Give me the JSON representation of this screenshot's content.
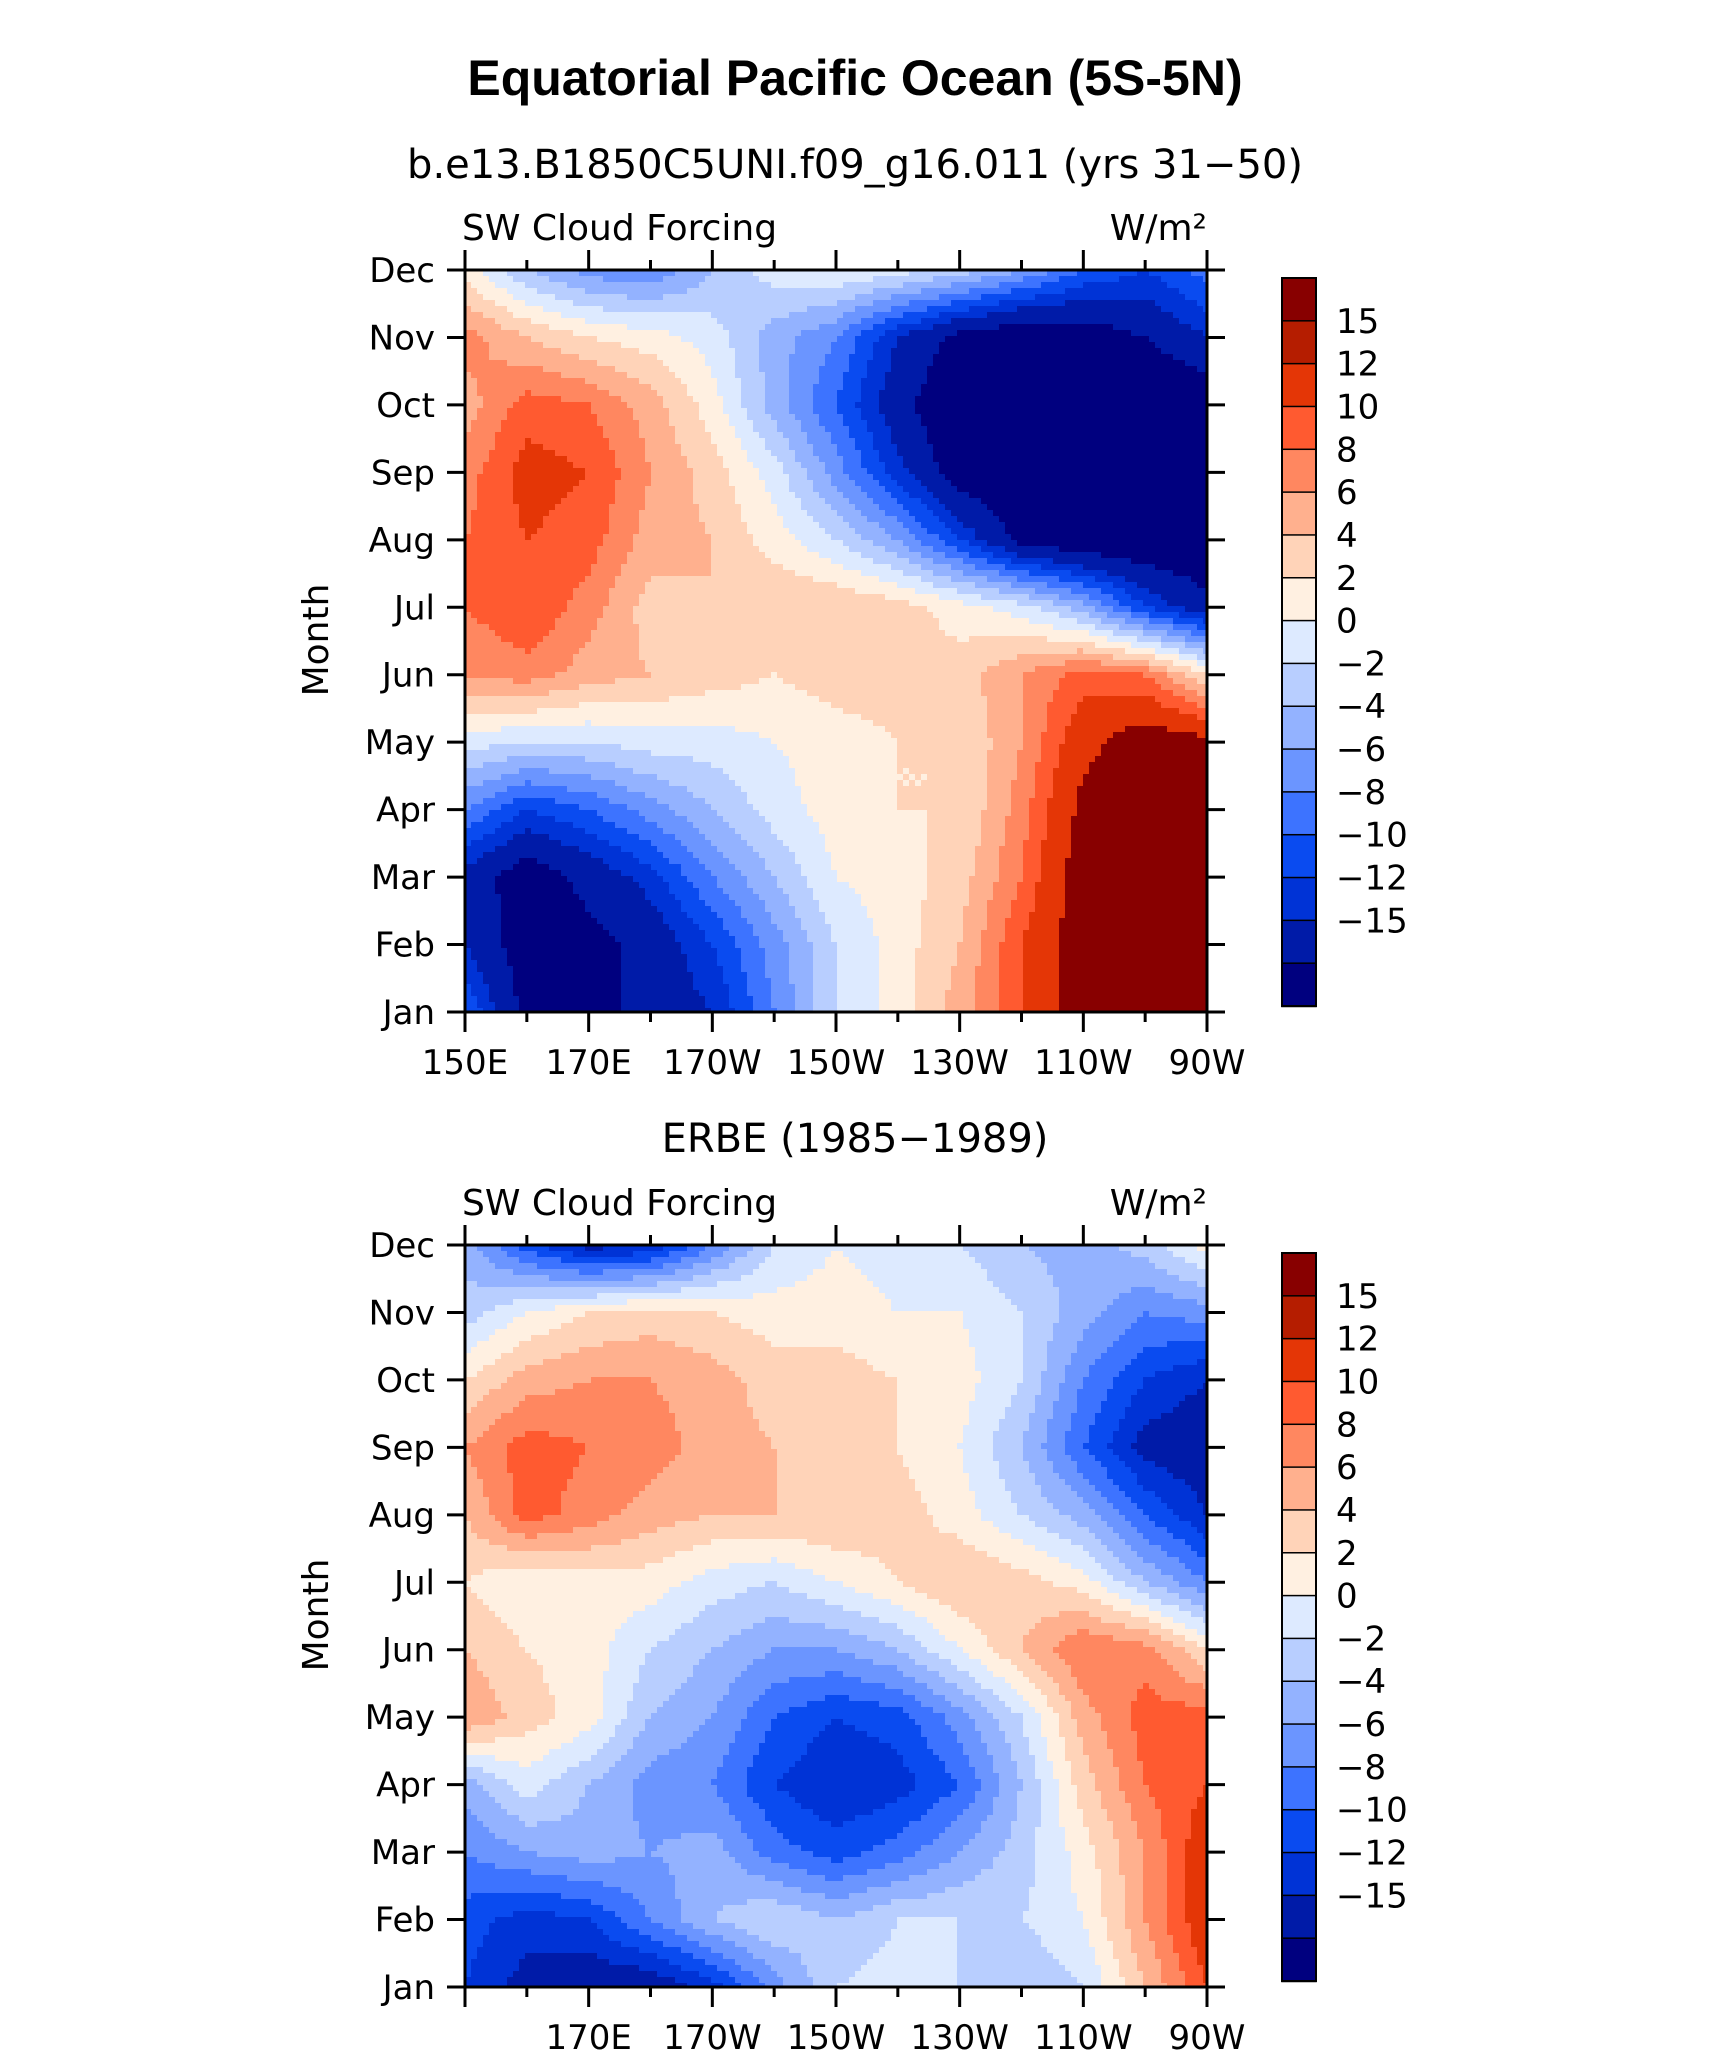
{
  "chart_data": {
    "type": "heatmap",
    "title": "Equatorial Pacific Ocean (5S-5N)",
    "panels": [
      {
        "subtitle": "b.e13.B1850C5UNI.f09_g16.011 (yrs 31−50)",
        "left_label": "SW Cloud Forcing",
        "right_label": "W/m²",
        "ylabel": "Month",
        "xlabels": [
          "150E",
          "170E",
          "170W",
          "150W",
          "130W",
          "110W",
          "90W"
        ],
        "ylabels": [
          "Jan",
          "Feb",
          "Mar",
          "Apr",
          "May",
          "Jun",
          "Jul",
          "Aug",
          "Sep",
          "Oct",
          "Nov",
          "Dec"
        ],
        "x": [
          150,
          160,
          170,
          180,
          190,
          200,
          210,
          220,
          230,
          240,
          250,
          260,
          270
        ],
        "z": [
          [
            -8,
            -16,
            -16,
            -14,
            -12,
            -6,
            0,
            3,
            7,
            12,
            17,
            18,
            18
          ],
          [
            -12,
            -17,
            -16,
            -14,
            -10,
            -5,
            0,
            3,
            6,
            12,
            17,
            18,
            18
          ],
          [
            -13,
            -17,
            -14,
            -11,
            -6,
            -2,
            2,
            3,
            5,
            10,
            17,
            18,
            18
          ],
          [
            -6,
            -10,
            -8,
            -5,
            -2,
            1,
            3,
            4,
            4,
            9,
            16,
            18,
            18
          ],
          [
            1,
            0,
            0,
            1,
            1,
            2,
            3,
            4,
            4,
            8,
            14,
            17,
            16
          ],
          [
            8,
            9,
            7,
            6,
            5,
            4,
            5,
            5,
            5,
            8,
            11,
            10,
            4
          ],
          [
            10,
            12,
            9,
            5,
            6,
            6,
            6,
            5,
            3,
            1,
            -3,
            -10,
            -14
          ],
          [
            10,
            12,
            11,
            7,
            6,
            3,
            0,
            -4,
            -10,
            -16,
            -18,
            -18,
            -18
          ],
          [
            9,
            13,
            12,
            8,
            5,
            1,
            -5,
            -11,
            -17,
            -18,
            -18,
            -18,
            -18
          ],
          [
            7,
            11,
            10,
            7,
            3,
            -3,
            -8,
            -14,
            -18,
            -18,
            -18,
            -18,
            -18
          ],
          [
            9,
            6,
            4,
            3,
            1,
            -3,
            -6,
            -12,
            -16,
            -18,
            -17,
            -15,
            -12
          ],
          [
            3,
            -2,
            -5,
            -6,
            -2,
            1,
            2,
            1,
            -1,
            -4,
            -8,
            -10,
            -7
          ]
        ]
      },
      {
        "subtitle": "ERBE (1985−1989)",
        "left_label": "SW Cloud Forcing",
        "right_label": "W/m²",
        "ylabel": "Month",
        "xlabels": [
          "170E",
          "170W",
          "150W",
          "130W",
          "110W",
          "90W"
        ],
        "ylabels": [
          "Jan",
          "Feb",
          "Mar",
          "Apr",
          "May",
          "Jun",
          "Jul",
          "Aug",
          "Sep",
          "Oct",
          "Nov",
          "Dec"
        ],
        "x": [
          150,
          160,
          170,
          180,
          190,
          200,
          210,
          220,
          230,
          240,
          250,
          260,
          270
        ],
        "z": [
          [
            -10,
            -13,
            -14,
            -14,
            -11,
            -5,
            0,
            1,
            0,
            -2,
            0,
            6,
            12
          ],
          [
            -9,
            -11,
            -10,
            -6,
            -2,
            0,
            -2,
            0,
            0,
            0,
            2,
            8,
            14
          ],
          [
            -6,
            -4,
            -3,
            -4,
            -3,
            -7,
            -9,
            -7,
            -4,
            -1,
            3,
            8,
            14
          ],
          [
            -3,
            1,
            -2,
            -5,
            -6,
            -10,
            -12,
            -11,
            -8,
            -2,
            5,
            10,
            12
          ],
          [
            8,
            5,
            3,
            -2,
            -4,
            -8,
            -10,
            -9,
            -5,
            0,
            7,
            11,
            11
          ],
          [
            6,
            4,
            3,
            0,
            -2,
            -4,
            -4,
            -2,
            2,
            6,
            10,
            9,
            4
          ],
          [
            4,
            2,
            3,
            3,
            1,
            0,
            2,
            4,
            6,
            5,
            3,
            -2,
            -6
          ],
          [
            6,
            11,
            9,
            7,
            6,
            6,
            6,
            5,
            3,
            0,
            -3,
            -8,
            -12
          ],
          [
            8,
            11,
            10,
            9,
            7,
            6,
            5,
            4,
            2,
            -2,
            -8,
            -13,
            -14
          ],
          [
            4,
            7,
            8,
            8,
            7,
            5,
            5,
            4,
            3,
            0,
            -6,
            -10,
            -12
          ],
          [
            -1,
            2,
            4,
            5,
            4,
            3,
            3,
            2,
            2,
            0,
            -3,
            -6,
            -5
          ],
          [
            -3,
            -9,
            -13,
            -12,
            -6,
            0,
            2,
            1,
            0,
            -2,
            -3,
            -1,
            3
          ]
        ]
      }
    ],
    "colorbar": {
      "levels": [
        -17,
        -15,
        -12,
        -10,
        -8,
        -6,
        -4,
        -2,
        0,
        2,
        4,
        6,
        8,
        10,
        12,
        15,
        17
      ],
      "tick_labels": [
        "15",
        "12",
        "10",
        "8",
        "6",
        "4",
        "2",
        "0",
        "−2",
        "−4",
        "−6",
        "−8",
        "−10",
        "−12",
        "−15"
      ],
      "colors": [
        "#00007f",
        "#001ba8",
        "#0033d6",
        "#0a4bf0",
        "#3d73ff",
        "#6b95ff",
        "#93b2ff",
        "#b8ceff",
        "#ddeaff",
        "#fff0e1",
        "#ffd3b8",
        "#ffb08e",
        "#ff8760",
        "#ff5a30",
        "#e43606",
        "#b51d00",
        "#880000"
      ]
    }
  }
}
